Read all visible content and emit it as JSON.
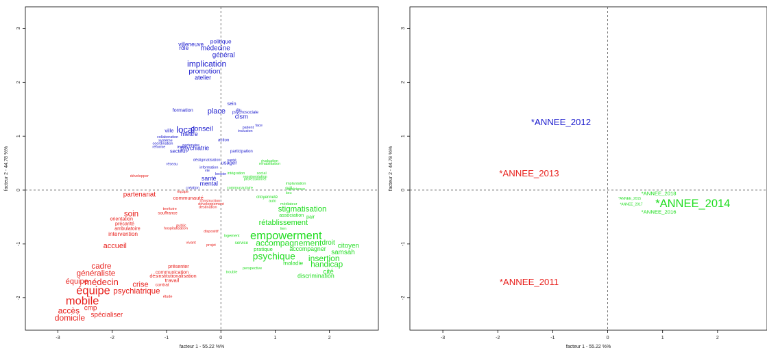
{
  "chart_data": [
    {
      "type": "scatter",
      "xlabel": "facteur  1  - 55.22 %%",
      "ylabel": "facteur  2 - 44.78 %%",
      "xlim": [
        -3.6,
        2.9
      ],
      "ylim": [
        -2.6,
        3.4
      ],
      "xticks": [
        "-3",
        "-2",
        "-1",
        "0",
        "1",
        "2"
      ],
      "yticks": [
        "-2",
        "-1",
        "0",
        "1",
        "2",
        "3"
      ],
      "reference_lines": {
        "x": 0,
        "y": 0,
        "style": "dashed"
      },
      "colors": {
        "ANNEE_2012": "#1a1acd",
        "ANNEE_2011_2013": "#e8201c",
        "ANNEE_2014": "#22dd22"
      },
      "series": [
        {
          "group": "blue",
          "color": "#1a1acd",
          "points": [
            {
              "label": "politique",
              "x": 0.0,
              "y": 2.75,
              "size": 1.5
            },
            {
              "label": "villeneuve",
              "x": -0.55,
              "y": 2.7,
              "size": 1.5
            },
            {
              "label": "rôle",
              "x": -0.68,
              "y": 2.63,
              "size": 1.5
            },
            {
              "label": "médecine",
              "x": -0.1,
              "y": 2.63,
              "size": 1.8
            },
            {
              "label": "général",
              "x": 0.05,
              "y": 2.5,
              "size": 1.8
            },
            {
              "label": "implication",
              "x": -0.26,
              "y": 2.33,
              "size": 2.2
            },
            {
              "label": "promotion",
              "x": -0.3,
              "y": 2.2,
              "size": 1.9
            },
            {
              "label": "atelier",
              "x": -0.33,
              "y": 2.08,
              "size": 1.6
            },
            {
              "label": "sein",
              "x": 0.2,
              "y": 1.6,
              "size": 1.3
            },
            {
              "label": "élu",
              "x": 0.33,
              "y": 1.48,
              "size": 1.1
            },
            {
              "label": "psychosociale",
              "x": 0.45,
              "y": 1.44,
              "size": 1.1
            },
            {
              "label": "formation",
              "x": -0.7,
              "y": 1.48,
              "size": 1.3
            },
            {
              "label": "place",
              "x": -0.08,
              "y": 1.46,
              "size": 2.0
            },
            {
              "label": "clsm",
              "x": 0.38,
              "y": 1.36,
              "size": 1.7
            },
            {
              "label": "face",
              "x": 0.7,
              "y": 1.2,
              "size": 1.0
            },
            {
              "label": "patient",
              "x": 0.5,
              "y": 1.16,
              "size": 1.0
            },
            {
              "label": "inclusion",
              "x": 0.45,
              "y": 1.1,
              "size": 1.0
            },
            {
              "label": "ville",
              "x": -0.95,
              "y": 1.1,
              "size": 1.4
            },
            {
              "label": "local",
              "x": -0.65,
              "y": 1.11,
              "size": 2.4
            },
            {
              "label": "conseil",
              "x": -0.35,
              "y": 1.13,
              "size": 1.9
            },
            {
              "label": "mettre",
              "x": -0.58,
              "y": 1.03,
              "size": 1.6
            },
            {
              "label": "collaboration",
              "x": -0.98,
              "y": 0.98,
              "size": 1.0
            },
            {
              "label": "système",
              "x": -1.02,
              "y": 0.92,
              "size": 1.0
            },
            {
              "label": "action",
              "x": 0.05,
              "y": 0.93,
              "size": 1.1
            },
            {
              "label": "coordination",
              "x": -1.07,
              "y": 0.86,
              "size": 1.0
            },
            {
              "label": "partenaire",
              "x": -0.55,
              "y": 0.83,
              "size": 1.0
            },
            {
              "label": "réforme",
              "x": -1.14,
              "y": 0.8,
              "size": 1.0
            },
            {
              "label": "œuvre",
              "x": -0.72,
              "y": 0.8,
              "size": 0.9
            },
            {
              "label": "psychiatrie",
              "x": -0.48,
              "y": 0.77,
              "size": 1.6
            },
            {
              "label": "secteur",
              "x": -0.78,
              "y": 0.72,
              "size": 1.4
            },
            {
              "label": "participation",
              "x": 0.38,
              "y": 0.72,
              "size": 1.1
            },
            {
              "label": "déstigmatisation",
              "x": -0.26,
              "y": 0.56,
              "size": 1.0
            },
            {
              "label": "santé",
              "x": 0.2,
              "y": 0.55,
              "size": 1.0
            },
            {
              "label": "usager",
              "x": 0.15,
              "y": 0.5,
              "size": 1.4
            },
            {
              "label": "réseau",
              "x": -0.9,
              "y": 0.48,
              "size": 1.0
            },
            {
              "label": "information",
              "x": -0.22,
              "y": 0.42,
              "size": 1.0
            },
            {
              "label": "vie",
              "x": -0.25,
              "y": 0.36,
              "size": 1.0
            },
            {
              "label": "besoin",
              "x": 0.0,
              "y": 0.3,
              "size": 1.0
            },
            {
              "label": "santé",
              "x": -0.22,
              "y": 0.21,
              "size": 1.6
            },
            {
              "label": "mental",
              "x": -0.22,
              "y": 0.11,
              "size": 1.6
            },
            {
              "label": "création",
              "x": -0.52,
              "y": 0.04,
              "size": 1.0
            }
          ]
        },
        {
          "group": "red",
          "color": "#e8201c",
          "points": [
            {
              "label": "développer",
              "x": -1.5,
              "y": 0.26,
              "size": 1.0
            },
            {
              "label": "équipe",
              "x": -0.7,
              "y": -0.03,
              "size": 1.0
            },
            {
              "label": "partenariat",
              "x": -1.5,
              "y": -0.09,
              "size": 1.8
            },
            {
              "label": "communauté",
              "x": -0.6,
              "y": -0.15,
              "size": 1.4
            },
            {
              "label": "construction",
              "x": -0.2,
              "y": -0.2,
              "size": 1.0
            },
            {
              "label": "développement",
              "x": -0.18,
              "y": -0.26,
              "size": 1.0
            },
            {
              "label": "destination",
              "x": -0.24,
              "y": -0.32,
              "size": 1.0
            },
            {
              "label": "territoire",
              "x": -0.94,
              "y": -0.35,
              "size": 1.0
            },
            {
              "label": "soin",
              "x": -1.65,
              "y": -0.45,
              "size": 2.1
            },
            {
              "label": "souffrance",
              "x": -0.98,
              "y": -0.43,
              "size": 1.1
            },
            {
              "label": "orientation",
              "x": -1.83,
              "y": -0.54,
              "size": 1.3
            },
            {
              "label": "précarité",
              "x": -1.77,
              "y": -0.63,
              "size": 1.3
            },
            {
              "label": "public",
              "x": -0.73,
              "y": -0.66,
              "size": 1.0
            },
            {
              "label": "hospitalisation",
              "x": -0.83,
              "y": -0.71,
              "size": 1.0
            },
            {
              "label": "ambulatoire",
              "x": -1.72,
              "y": -0.72,
              "size": 1.3
            },
            {
              "label": "dispositif",
              "x": -0.18,
              "y": -0.77,
              "size": 1.0
            },
            {
              "label": "intervention",
              "x": -1.8,
              "y": -0.82,
              "size": 1.5
            },
            {
              "label": "vivant",
              "x": -0.55,
              "y": -0.98,
              "size": 1.0
            },
            {
              "label": "projet",
              "x": -0.18,
              "y": -1.02,
              "size": 1.0
            },
            {
              "label": "accueil",
              "x": -1.95,
              "y": -1.04,
              "size": 2.0
            },
            {
              "label": "cadre",
              "x": -2.2,
              "y": -1.42,
              "size": 2.1
            },
            {
              "label": "présenter",
              "x": -0.78,
              "y": -1.42,
              "size": 1.3
            },
            {
              "label": "communication",
              "x": -0.9,
              "y": -1.53,
              "size": 1.3
            },
            {
              "label": "généraliste",
              "x": -2.3,
              "y": -1.55,
              "size": 2.1
            },
            {
              "label": "désinstitutionalisation",
              "x": -0.88,
              "y": -1.6,
              "size": 1.3
            },
            {
              "label": "travail",
              "x": -0.9,
              "y": -1.68,
              "size": 1.4
            },
            {
              "label": "équipe",
              "x": -2.65,
              "y": -1.7,
              "size": 2.0
            },
            {
              "label": "médecin",
              "x": -2.2,
              "y": -1.72,
              "size": 2.4
            },
            {
              "label": "crise",
              "x": -1.48,
              "y": -1.76,
              "size": 2.0
            },
            {
              "label": "contrat",
              "x": -1.08,
              "y": -1.76,
              "size": 1.2
            },
            {
              "label": "équipe",
              "x": -2.35,
              "y": -1.88,
              "size": 3.0
            },
            {
              "label": "psychiatrique",
              "x": -1.55,
              "y": -1.88,
              "size": 2.1
            },
            {
              "label": "étude",
              "x": -0.98,
              "y": -1.98,
              "size": 1.0
            },
            {
              "label": "mobile",
              "x": -2.55,
              "y": -2.07,
              "size": 3.0
            },
            {
              "label": "cmp",
              "x": -2.4,
              "y": -2.19,
              "size": 1.8
            },
            {
              "label": "accès",
              "x": -2.8,
              "y": -2.25,
              "size": 2.2
            },
            {
              "label": "spécialiser",
              "x": -2.1,
              "y": -2.32,
              "size": 1.8
            },
            {
              "label": "domicile",
              "x": -2.78,
              "y": -2.38,
              "size": 2.2
            }
          ]
        },
        {
          "group": "green",
          "color": "#22dd22",
          "points": [
            {
              "label": "évaluation",
              "x": 0.9,
              "y": 0.54,
              "size": 1.0
            },
            {
              "label": "réhabilitation",
              "x": 0.9,
              "y": 0.49,
              "size": 1.0
            },
            {
              "label": "intégration",
              "x": 0.28,
              "y": 0.31,
              "size": 1.0
            },
            {
              "label": "social",
              "x": 0.75,
              "y": 0.31,
              "size": 1.0
            },
            {
              "label": "représentation",
              "x": 0.63,
              "y": 0.25,
              "size": 1.0
            },
            {
              "label": "professionnel",
              "x": 0.63,
              "y": 0.2,
              "size": 1.0
            },
            {
              "label": "communautaire",
              "x": 0.35,
              "y": 0.04,
              "size": 1.0
            },
            {
              "label": "implantation",
              "x": 1.38,
              "y": 0.12,
              "size": 1.0
            },
            {
              "label": "outil",
              "x": 1.25,
              "y": 0.04,
              "size": 1.0
            },
            {
              "label": "expérience",
              "x": 1.38,
              "y": 0.02,
              "size": 1.0
            },
            {
              "label": "lieu",
              "x": 1.25,
              "y": -0.06,
              "size": 1.0
            },
            {
              "label": "citoyenneté",
              "x": 0.85,
              "y": -0.13,
              "size": 1.1
            },
            {
              "label": "auto",
              "x": 0.95,
              "y": -0.2,
              "size": 1.0
            },
            {
              "label": "médiateur",
              "x": 1.25,
              "y": -0.26,
              "size": 1.0
            },
            {
              "label": "stigmatisation",
              "x": 1.5,
              "y": -0.36,
              "size": 2.1
            },
            {
              "label": "association",
              "x": 1.3,
              "y": -0.47,
              "size": 1.3
            },
            {
              "label": "pair",
              "x": 1.65,
              "y": -0.5,
              "size": 1.3
            },
            {
              "label": "rétablissement",
              "x": 1.15,
              "y": -0.61,
              "size": 2.0
            },
            {
              "label": "lien",
              "x": 1.15,
              "y": -0.72,
              "size": 1.0
            },
            {
              "label": "logement",
              "x": 0.2,
              "y": -0.85,
              "size": 1.0
            },
            {
              "label": "empowerment",
              "x": 1.2,
              "y": -0.86,
              "size": 3.0
            },
            {
              "label": "service",
              "x": 0.38,
              "y": -0.98,
              "size": 1.1
            },
            {
              "label": "accompagnement",
              "x": 1.25,
              "y": -0.99,
              "size": 2.2
            },
            {
              "label": "droit",
              "x": 1.98,
              "y": -0.98,
              "size": 1.8
            },
            {
              "label": "citoyen",
              "x": 2.35,
              "y": -1.04,
              "size": 1.8
            },
            {
              "label": "pratique",
              "x": 0.78,
              "y": -1.1,
              "size": 1.4
            },
            {
              "label": "accompagner",
              "x": 1.6,
              "y": -1.1,
              "size": 1.6
            },
            {
              "label": "samsah",
              "x": 2.25,
              "y": -1.16,
              "size": 1.8
            },
            {
              "label": "psychique",
              "x": 0.98,
              "y": -1.24,
              "size": 2.5
            },
            {
              "label": "insertion",
              "x": 1.9,
              "y": -1.28,
              "size": 2.2
            },
            {
              "label": "maladie",
              "x": 1.33,
              "y": -1.36,
              "size": 1.5
            },
            {
              "label": "handicap",
              "x": 1.95,
              "y": -1.39,
              "size": 2.1
            },
            {
              "label": "perspective",
              "x": 0.58,
              "y": -1.45,
              "size": 1.0
            },
            {
              "label": "trouble",
              "x": 0.2,
              "y": -1.52,
              "size": 1.0
            },
            {
              "label": "cité",
              "x": 1.98,
              "y": -1.52,
              "size": 1.8
            },
            {
              "label": "discrimination",
              "x": 1.75,
              "y": -1.6,
              "size": 1.6
            }
          ]
        }
      ]
    },
    {
      "type": "scatter",
      "xlabel": "facteur  1  - 55.22 %%",
      "ylabel": "facteur  2 - 44.78 %%",
      "xlim": [
        -3.6,
        2.9
      ],
      "ylim": [
        -2.6,
        3.4
      ],
      "xticks": [
        "-3",
        "-2",
        "-1",
        "0",
        "1",
        "2"
      ],
      "yticks": [
        "-2",
        "-1",
        "0",
        "1",
        "2",
        "3"
      ],
      "reference_lines": {
        "x": 0,
        "y": 0,
        "style": "dashed"
      },
      "series": [
        {
          "group": "years",
          "points": [
            {
              "label": "*ANNEE_2012",
              "x": -0.85,
              "y": 1.25,
              "size": 2.4,
              "color": "#1a1acd"
            },
            {
              "label": "*ANNEE_2013",
              "x": -1.43,
              "y": 0.3,
              "size": 2.4,
              "color": "#e8201c"
            },
            {
              "label": "*ANNEE_2011",
              "x": -1.43,
              "y": -1.72,
              "size": 2.4,
              "color": "#e8201c"
            },
            {
              "label": "*ANNEE_2018",
              "x": 0.93,
              "y": -0.07,
              "size": 1.4,
              "color": "#22dd22"
            },
            {
              "label": "*ANNEE_2015",
              "x": 0.4,
              "y": -0.16,
              "size": 0.9,
              "color": "#22dd22"
            },
            {
              "label": "*ANNEE_2014",
              "x": 1.55,
              "y": -0.26,
              "size": 3.0,
              "color": "#22dd22"
            },
            {
              "label": "*ANNEE_2017",
              "x": 0.43,
              "y": -0.27,
              "size": 0.9,
              "color": "#22dd22"
            },
            {
              "label": "*ANNEE_2016",
              "x": 0.93,
              "y": -0.41,
              "size": 1.4,
              "color": "#22dd22"
            }
          ]
        }
      ]
    }
  ]
}
